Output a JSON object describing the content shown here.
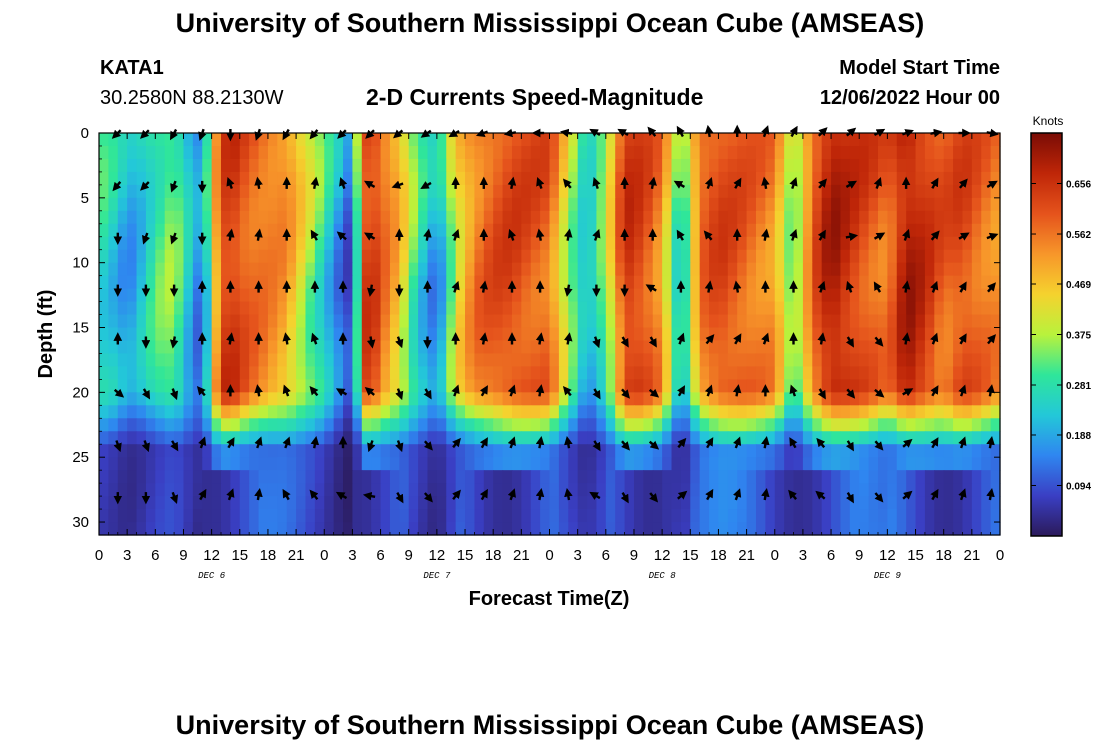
{
  "header": {
    "title": "University of Southern Mississippi Ocean Cube (AMSEAS)",
    "station": "KATA1",
    "coords": "30.2580N  88.2130W",
    "subtitle": "2-D Currents Speed-Magnitude",
    "model_label": "Model Start Time",
    "model_time": "12/06/2022 Hour 00",
    "footer_title": "University of Southern Mississippi Ocean Cube (AMSEAS)"
  },
  "colors": {
    "stops": [
      "#2b1a5a",
      "#3a3fc4",
      "#2f86f0",
      "#23c8d8",
      "#2fe69a",
      "#b9f23c",
      "#f5d22e",
      "#f7962a",
      "#e5531c",
      "#bf2608",
      "#7a0c05"
    ],
    "arrow": "#000000",
    "frame": "#000000"
  },
  "chart_data": {
    "type": "heatmap",
    "title": "2-D Currents Speed-Magnitude",
    "xlabel": "Forecast Time(Z)",
    "ylabel": "Depth (ft)",
    "xlim": [
      0,
      96
    ],
    "ylim": [
      31,
      0
    ],
    "x_ticks": [
      0,
      3,
      6,
      9,
      12,
      15,
      18,
      21,
      24,
      27,
      30,
      33,
      36,
      39,
      42,
      45,
      48,
      51,
      54,
      57,
      60,
      63,
      66,
      69,
      72,
      75,
      78,
      81,
      84,
      87,
      90,
      93,
      96
    ],
    "x_tick_labels": [
      "0",
      "3",
      "6",
      "9",
      "12",
      "15",
      "18",
      "21",
      "0",
      "3",
      "6",
      "9",
      "12",
      "15",
      "18",
      "21",
      "0",
      "3",
      "6",
      "9",
      "12",
      "15",
      "18",
      "21",
      "0",
      "3",
      "6",
      "9",
      "12",
      "15",
      "18",
      "21",
      "0"
    ],
    "day_labels": [
      {
        "x": 12,
        "label": "DEC 6"
      },
      {
        "x": 36,
        "label": "DEC 7"
      },
      {
        "x": 60,
        "label": "DEC 8"
      },
      {
        "x": 84,
        "label": "DEC 9"
      }
    ],
    "y_ticks": [
      0,
      5,
      10,
      15,
      20,
      25,
      30
    ],
    "y_tick_labels": [
      "0",
      "5",
      "10",
      "15",
      "20",
      "25",
      "30"
    ],
    "colorbar": {
      "unit": "Knots",
      "range": [
        0.0,
        0.75
      ],
      "ticks": [
        0.094,
        0.188,
        0.281,
        0.375,
        0.469,
        0.562,
        0.656
      ],
      "tick_labels": [
        "0.094",
        "0.188",
        "0.281",
        "0.375",
        "0.469",
        "0.562",
        "0.656"
      ]
    },
    "speed_profile_hours": [
      0,
      2,
      3,
      4,
      6,
      8,
      10,
      11,
      12,
      13,
      14,
      16,
      20,
      24,
      26,
      27,
      28,
      29,
      30,
      32,
      34,
      36,
      38,
      40,
      42,
      44,
      48,
      52,
      54,
      56,
      58,
      60,
      62,
      64,
      66,
      68,
      72,
      74,
      76,
      78,
      80,
      84,
      86,
      88,
      90,
      92,
      96
    ],
    "speed_profile_surface": [
      0.3,
      0.25,
      0.2,
      0.22,
      0.3,
      0.35,
      0.2,
      0.15,
      0.4,
      0.6,
      0.65,
      0.6,
      0.55,
      0.3,
      0.18,
      0.12,
      0.6,
      0.65,
      0.6,
      0.5,
      0.3,
      0.2,
      0.45,
      0.55,
      0.6,
      0.62,
      0.6,
      0.25,
      0.4,
      0.65,
      0.62,
      0.55,
      0.3,
      0.6,
      0.62,
      0.6,
      0.55,
      0.35,
      0.6,
      0.7,
      0.65,
      0.6,
      0.7,
      0.65,
      0.6,
      0.62,
      0.55
    ],
    "mid_depth_factor": [
      0.9,
      0.85,
      0.8,
      0.85,
      1.0,
      1.0,
      0.9,
      0.8,
      1.0,
      1.05,
      1.0,
      0.95,
      0.9,
      0.85,
      0.6,
      0.45,
      1.0,
      1.0,
      0.95,
      0.9,
      0.85,
      0.7,
      0.9,
      1.0,
      1.0,
      1.0,
      0.95,
      0.7,
      0.8,
      1.0,
      1.0,
      0.95,
      0.6,
      0.9,
      1.0,
      1.0,
      0.95,
      0.8,
      0.95,
      1.0,
      1.0,
      0.9,
      1.0,
      1.0,
      0.95,
      1.0,
      0.95
    ],
    "vector_depths": [
      0,
      4,
      8,
      12,
      16,
      20,
      24,
      28
    ],
    "vector_hours": [
      2,
      5,
      8,
      11,
      14,
      17,
      20,
      23,
      26,
      29,
      32,
      35,
      38,
      41,
      44,
      47,
      50,
      53,
      56,
      59,
      62,
      65,
      68,
      71,
      74,
      77,
      80,
      83,
      86,
      89,
      92,
      95
    ],
    "vector_direction_deg_rows": [
      [
        225,
        225,
        210,
        200,
        180,
        200,
        210,
        220,
        225,
        225,
        230,
        235,
        240,
        250,
        260,
        270,
        280,
        300,
        300,
        320,
        330,
        350,
        0,
        20,
        30,
        45,
        50,
        60,
        70,
        80,
        90,
        100
      ],
      [
        220,
        225,
        200,
        180,
        340,
        350,
        0,
        10,
        340,
        300,
        250,
        240,
        0,
        0,
        10,
        340,
        320,
        340,
        0,
        10,
        300,
        20,
        30,
        350,
        20,
        40,
        60,
        20,
        0,
        30,
        40,
        60
      ],
      [
        180,
        200,
        200,
        180,
        10,
        10,
        0,
        330,
        310,
        300,
        0,
        10,
        20,
        0,
        340,
        350,
        10,
        20,
        0,
        0,
        330,
        320,
        0,
        10,
        20,
        30,
        80,
        60,
        20,
        40,
        60,
        70
      ],
      [
        180,
        180,
        180,
        0,
        0,
        0,
        0,
        0,
        0,
        190,
        180,
        0,
        20,
        10,
        0,
        0,
        190,
        180,
        180,
        300,
        0,
        10,
        350,
        0,
        0,
        20,
        340,
        330,
        10,
        20,
        30,
        40
      ],
      [
        0,
        180,
        190,
        0,
        10,
        0,
        350,
        340,
        0,
        170,
        160,
        180,
        0,
        10,
        0,
        10,
        10,
        160,
        150,
        150,
        20,
        40,
        30,
        20,
        0,
        10,
        150,
        140,
        10,
        20,
        30,
        40
      ],
      [
        130,
        150,
        160,
        320,
        0,
        350,
        340,
        320,
        300,
        310,
        160,
        150,
        20,
        30,
        20,
        10,
        320,
        150,
        140,
        130,
        30,
        20,
        10,
        0,
        340,
        150,
        140,
        130,
        60,
        30,
        20,
        10
      ],
      [
        160,
        160,
        150,
        20,
        30,
        20,
        20,
        10,
        0,
        200,
        160,
        140,
        40,
        30,
        20,
        10,
        350,
        150,
        140,
        130,
        40,
        30,
        20,
        10,
        330,
        320,
        150,
        140,
        50,
        30,
        20,
        10
      ],
      [
        180,
        180,
        160,
        30,
        20,
        10,
        330,
        320,
        300,
        280,
        150,
        140,
        40,
        30,
        20,
        10,
        350,
        300,
        150,
        140,
        50,
        30,
        20,
        10,
        320,
        310,
        150,
        140,
        50,
        30,
        20,
        10
      ]
    ]
  }
}
